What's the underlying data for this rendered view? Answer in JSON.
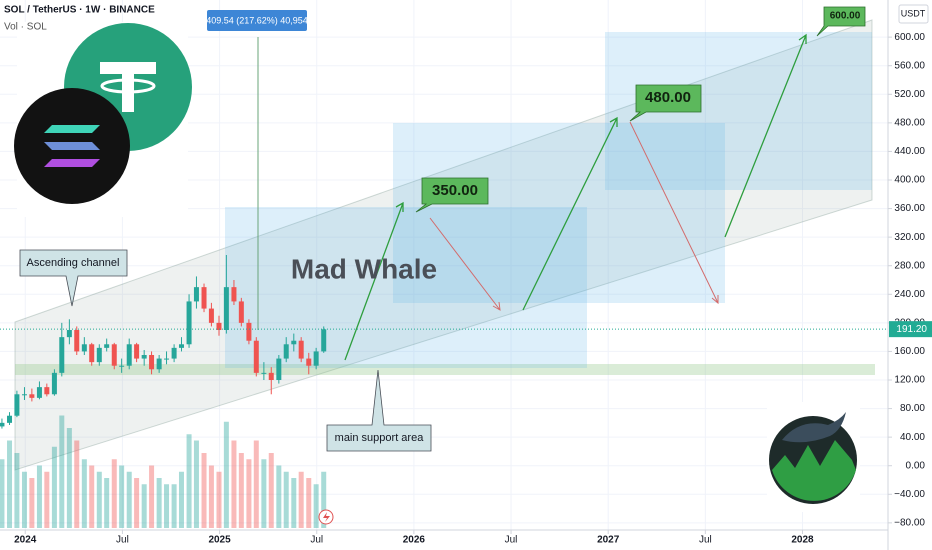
{
  "chart_data": {
    "type": "candlestick",
    "title": "SOL / TetherUS · 1W · BINANCE",
    "subtitle": "Vol · SOL",
    "y_axis_label": "USDT",
    "x": [
      2023.88,
      2023.919,
      2023.957,
      2023.996,
      2024.034,
      2024.073,
      2024.111,
      2024.15,
      2024.188,
      2024.227,
      2024.265,
      2024.304,
      2024.342,
      2024.381,
      2024.419,
      2024.458,
      2024.496,
      2024.535,
      2024.573,
      2024.612,
      2024.65,
      2024.689,
      2024.727,
      2024.766,
      2024.804,
      2024.843,
      2024.881,
      2024.92,
      2024.958,
      2024.997,
      2025.035,
      2025.074,
      2025.112,
      2025.151,
      2025.189,
      2025.228,
      2025.266,
      2025.305,
      2025.343,
      2025.382,
      2025.42,
      2025.459,
      2025.497,
      2025.536
    ],
    "open": [
      55,
      60,
      70,
      100,
      100,
      95,
      110,
      100,
      130,
      180,
      190,
      160,
      170,
      145,
      165,
      170,
      140,
      140,
      170,
      150,
      155,
      135,
      150,
      150,
      165,
      170,
      230,
      250,
      220,
      200,
      190,
      250,
      230,
      200,
      175,
      130,
      130,
      120,
      150,
      170,
      175,
      150,
      140,
      160
    ],
    "high": [
      66,
      75,
      105,
      110,
      108,
      118,
      115,
      135,
      200,
      205,
      195,
      180,
      172,
      170,
      178,
      172,
      150,
      178,
      172,
      162,
      160,
      155,
      160,
      170,
      180,
      240,
      265,
      255,
      228,
      210,
      295,
      260,
      235,
      205,
      180,
      145,
      138,
      155,
      180,
      185,
      180,
      158,
      165,
      195
    ],
    "low": [
      52,
      57,
      68,
      92,
      90,
      93,
      97,
      98,
      125,
      170,
      155,
      155,
      140,
      140,
      160,
      135,
      130,
      135,
      145,
      140,
      128,
      130,
      142,
      145,
      160,
      165,
      220,
      215,
      195,
      182,
      185,
      225,
      195,
      170,
      125,
      120,
      100,
      115,
      145,
      160,
      145,
      128,
      135,
      158
    ],
    "close": [
      60,
      70,
      100,
      100,
      95,
      110,
      100,
      130,
      180,
      190,
      160,
      170,
      145,
      165,
      170,
      140,
      140,
      170,
      150,
      155,
      135,
      150,
      150,
      165,
      170,
      230,
      250,
      220,
      200,
      190,
      250,
      230,
      200,
      175,
      130,
      130,
      120,
      150,
      170,
      175,
      150,
      140,
      160,
      191
    ],
    "volume": [
      55,
      70,
      60,
      45,
      40,
      50,
      45,
      65,
      90,
      80,
      70,
      55,
      50,
      45,
      40,
      55,
      50,
      45,
      40,
      35,
      50,
      40,
      35,
      35,
      45,
      75,
      70,
      60,
      50,
      45,
      85,
      70,
      60,
      55,
      70,
      55,
      60,
      50,
      45,
      40,
      45,
      40,
      35,
      45
    ],
    "volume_lim": [
      0,
      120
    ],
    "up_color": "#26a69a",
    "down_color": "#ef5350",
    "xlim": [
      2023.87,
      2028.44
    ],
    "xticks": [
      {
        "value": 2024,
        "label": "2024"
      },
      {
        "value": 2024.5,
        "label": "Jul"
      },
      {
        "value": 2025,
        "label": "2025"
      },
      {
        "value": 2025.5,
        "label": "Jul"
      },
      {
        "value": 2026,
        "label": "2026"
      },
      {
        "value": 2026.5,
        "label": "Jul"
      },
      {
        "value": 2027,
        "label": "2027"
      },
      {
        "value": 2027.5,
        "label": "Jul"
      },
      {
        "value": 2028,
        "label": "2028"
      }
    ],
    "ylim": [
      -90,
      652
    ],
    "yticks": [
      {
        "value": 600,
        "label": "600.00"
      },
      {
        "value": 560,
        "label": "560.00"
      },
      {
        "value": 520,
        "label": "520.00"
      },
      {
        "value": 480,
        "label": "480.00"
      },
      {
        "value": 440,
        "label": "440.00"
      },
      {
        "value": 400,
        "label": "400.00"
      },
      {
        "value": 360,
        "label": "360.00"
      },
      {
        "value": 320,
        "label": "320.00"
      },
      {
        "value": 280,
        "label": "280.00"
      },
      {
        "value": 240,
        "label": "240.00"
      },
      {
        "value": 200,
        "label": "200.00"
      },
      {
        "value": 160,
        "label": "160.00"
      },
      {
        "value": 120,
        "label": "120.00"
      },
      {
        "value": 80,
        "label": "80.00"
      },
      {
        "value": 40,
        "label": "40.00"
      },
      {
        "value": 0,
        "label": "0.00"
      },
      {
        "value": -40,
        "label": "−40.00"
      },
      {
        "value": -80,
        "label": "−80.00"
      }
    ],
    "last_price": {
      "value": 191.2,
      "label": "191.20"
    },
    "last_price_color": "#22ab94",
    "grid": true,
    "annotations": {
      "ascending_channel": "Ascending channel",
      "support": "main support area",
      "target_1": "350.00",
      "target_2": "480.00",
      "target_3": "600.00",
      "measure": "409.54 (217.62%) 40,954",
      "watermark": "Mad Whale"
    }
  }
}
